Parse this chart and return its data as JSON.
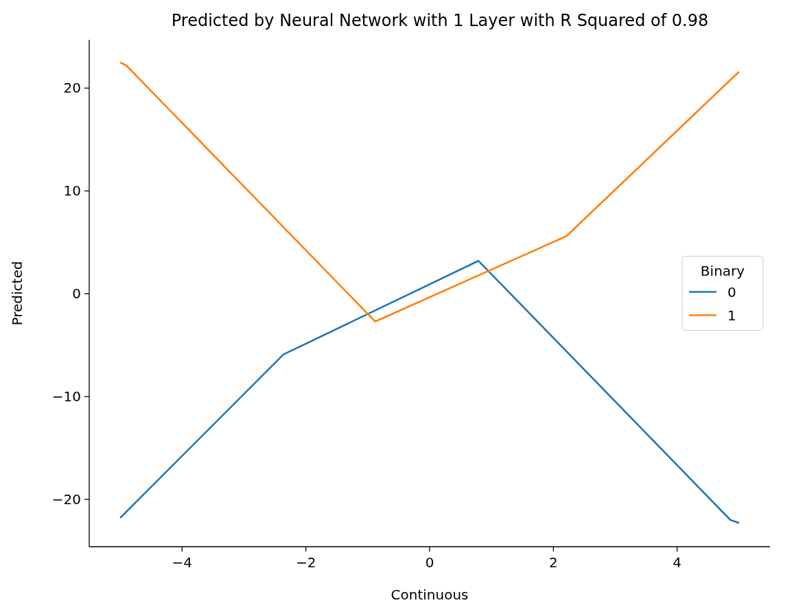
{
  "chart_data": {
    "type": "line",
    "title": "Predicted by Neural Network with 1 Layer with R Squared of 0.98",
    "xlabel": "Continuous",
    "ylabel": "Predicted",
    "legend_title": "Binary",
    "legend": "center right",
    "xlim": [
      -5.5,
      5.5
    ],
    "ylim": [
      -24.6,
      24.7
    ],
    "xticks": [
      {
        "value": -4,
        "label": "−4"
      },
      {
        "value": -2,
        "label": "−2"
      },
      0,
      2,
      4
    ],
    "yticks": [
      {
        "value": -20,
        "label": "−20"
      },
      {
        "value": -10,
        "label": "−10"
      },
      0,
      10,
      20
    ],
    "grid": false,
    "series": [
      {
        "name": "0",
        "color": "#1f77b4",
        "x": [
          -5,
          -2.36,
          0.79,
          4.86,
          5
        ],
        "values": [
          -21.8,
          -5.9,
          3.2,
          -22,
          -22.3
        ]
      },
      {
        "name": "1",
        "color": "#ff7f0e",
        "x": [
          -5,
          -4.9,
          -0.88,
          2.21,
          5
        ],
        "values": [
          22.5,
          22.2,
          -2.7,
          5.6,
          21.6
        ]
      }
    ]
  }
}
